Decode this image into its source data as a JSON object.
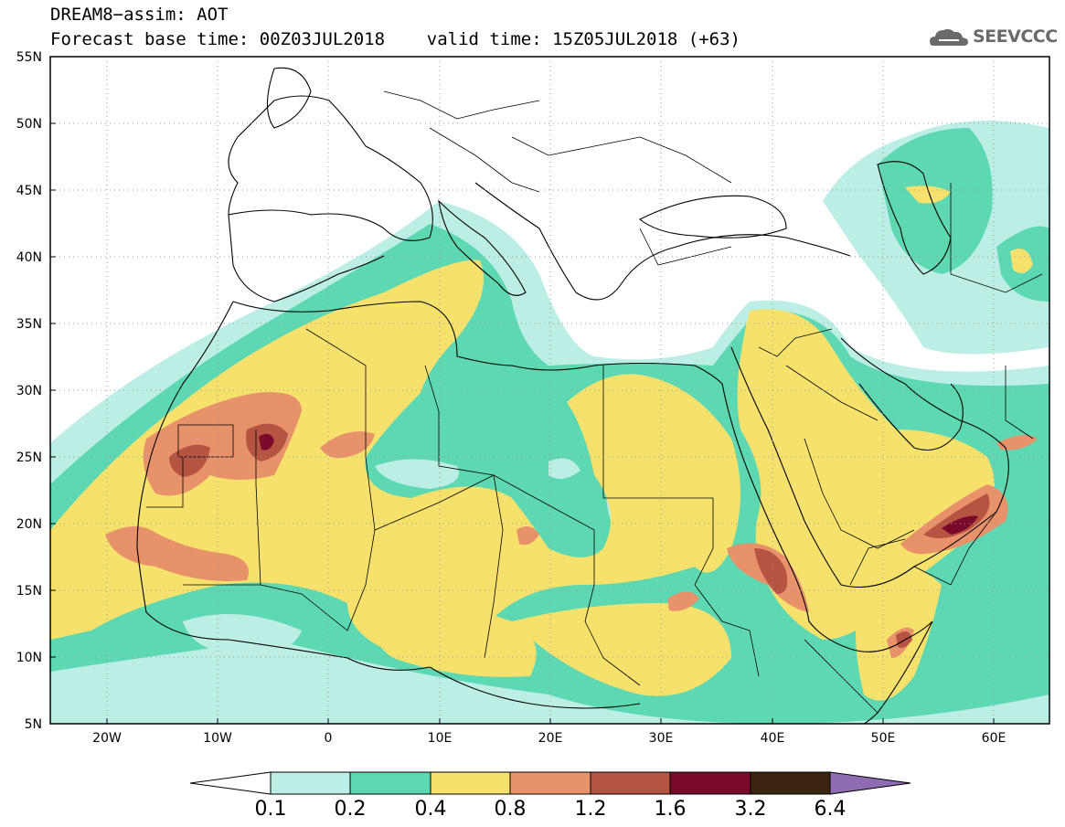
{
  "header": {
    "line1": "DREAM8−assim: AOT",
    "line2": "Forecast base time: 00Z03JUL2018    valid time: 15Z05JUL2018 (+63)",
    "logo_text": "SEEVCCC"
  },
  "map": {
    "lon_range": [
      -25,
      65
    ],
    "lat_range": [
      5,
      55
    ],
    "lon_ticks": [
      "20W",
      "10W",
      "0",
      "10E",
      "20E",
      "30E",
      "40E",
      "50E",
      "60E"
    ],
    "lat_ticks": [
      "55N",
      "50N",
      "45N",
      "40N",
      "35N",
      "30N",
      "25N",
      "20N",
      "15N",
      "10N",
      "5N"
    ],
    "field": "AOT"
  },
  "colorbar": {
    "labels": [
      "0.1",
      "0.2",
      "0.4",
      "0.8",
      "1.2",
      "1.6",
      "3.2",
      "6.4"
    ],
    "colors": {
      "below": "#ffffff",
      "c1": "#bdeee6",
      "c2": "#5ed8b2",
      "c3": "#f5e16c",
      "c4": "#e7926b",
      "c5": "#b65443",
      "c6": "#7a0a2b",
      "c7": "#3a2410",
      "above": "#8e6bb2"
    }
  }
}
